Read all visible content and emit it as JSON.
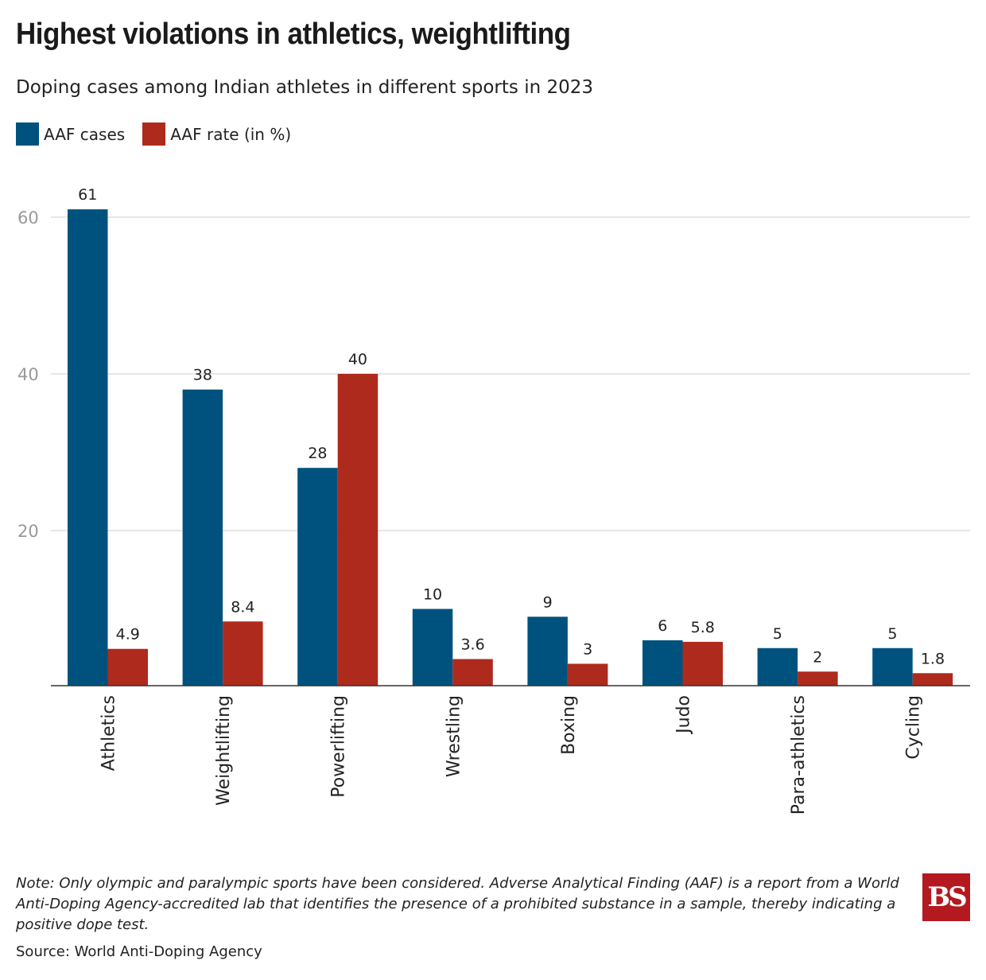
{
  "chart_data": {
    "type": "bar",
    "title": "Highest violations in athletics, weightlifting",
    "subtitle": "Doping cases among Indian athletes in different sports in 2023",
    "categories": [
      "Athletics",
      "Weightlifting",
      "Powerlifting",
      "Wrestling",
      "Boxing",
      "Judo",
      "Para-athletics",
      "Cycling"
    ],
    "series": [
      {
        "name": "AAF cases",
        "color": "#00527e",
        "values": [
          61,
          38,
          28,
          10,
          9,
          6,
          5,
          5
        ]
      },
      {
        "name": "AAF rate (in %)",
        "color": "#ae2a1d",
        "values": [
          4.9,
          8.4,
          40,
          3.6,
          3,
          5.8,
          2,
          1.8
        ]
      }
    ],
    "ylim": [
      0,
      65
    ],
    "yticks": [
      20,
      40,
      60
    ],
    "grid": true,
    "legend": "top-left",
    "note": "Note: Only olympic and paralympic sports have been considered. Adverse Analytical Finding (AAF) is a report from a World Anti-Doping Agency-accredited lab that identifies the presence of a prohibited substance in a sample, thereby indicating a positive dope test.",
    "source": "Source: World Anti-Doping Agency",
    "logo": "BS"
  }
}
